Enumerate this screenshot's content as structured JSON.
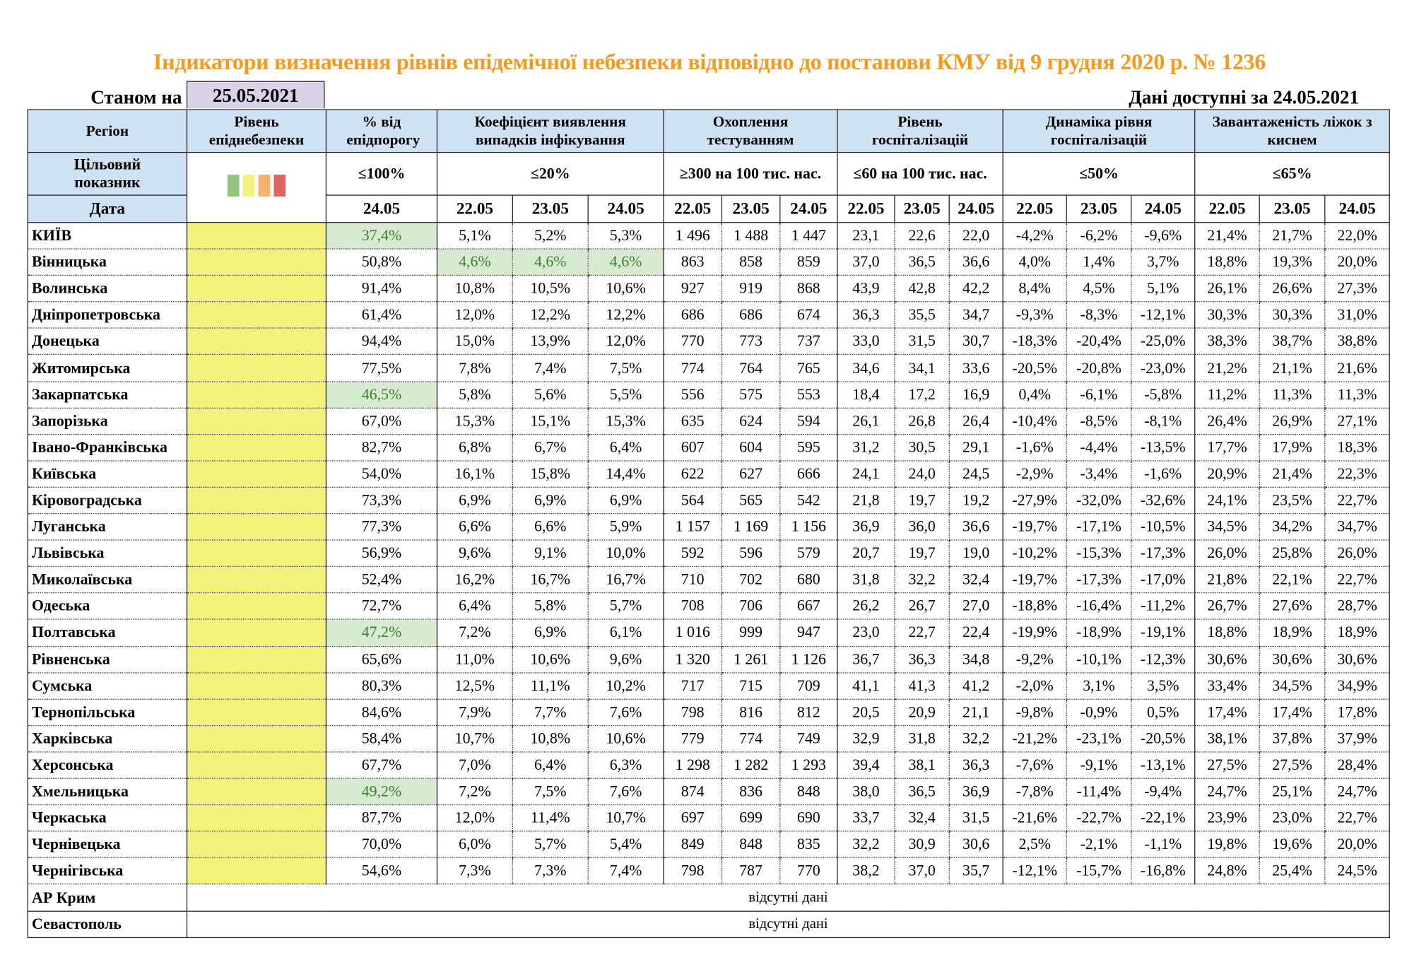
{
  "title": "Індикатори визначення рівнів епідемічної небезпеки відповідно до постанови КМУ від 9 грудня 2020 р. № 1236",
  "as_of_label": "Станом на",
  "as_of_date": "25.05.2021",
  "available_label": "Дані доступні за  24.05.2021",
  "colors": {
    "title": "#F39A1F",
    "header_bg": "#CFE2F3",
    "level_yellow": "#F2F27C",
    "highlight_bg": "#D9EAD3",
    "highlight_text": "#38812B",
    "legend": [
      "#93C47D",
      "#F2F27C",
      "#F6B26B",
      "#E06666"
    ]
  },
  "headers": {
    "region": "Регіон",
    "level": "Рівень епіднебезпеки",
    "pct": "% від епідпорогу",
    "coef": "Коефіцієнт виявлення випадків інфікування",
    "testing": "Охоплення тестуванням",
    "hosp": "Рівень госпіталізацій",
    "dyn": "Динаміка рівня госпіталізацій",
    "beds": "Завантаженість ліжок з киснем"
  },
  "targets": {
    "label": "Цільовий показник",
    "pct": "≤100%",
    "coef": "≤20%",
    "testing": "≥300 на 100 тис. нас.",
    "hosp": "≤60 на 100 тис. нас.",
    "dyn": "≤50%",
    "beds": "≤65%"
  },
  "date_label": "Дата",
  "dates": {
    "pct": [
      "24.05"
    ],
    "group": [
      "22.05",
      "23.05",
      "24.05"
    ]
  },
  "rows": [
    {
      "region": "КИЇВ",
      "level": "yellow",
      "pct": "37,4%",
      "pct_hl": true,
      "coef": [
        "5,1%",
        "5,2%",
        "5,3%"
      ],
      "testing": [
        "1 496",
        "1 488",
        "1 447"
      ],
      "hosp": [
        "23,1",
        "22,6",
        "22,0"
      ],
      "dyn": [
        "-4,2%",
        "-6,2%",
        "-9,6%"
      ],
      "beds": [
        "21,4%",
        "21,7%",
        "22,0%"
      ]
    },
    {
      "region": "Вінницька",
      "level": "yellow",
      "pct": "50,8%",
      "coef": [
        "4,6%",
        "4,6%",
        "4,6%"
      ],
      "coef_hl": true,
      "testing": [
        "863",
        "858",
        "859"
      ],
      "hosp": [
        "37,0",
        "36,5",
        "36,6"
      ],
      "dyn": [
        "4,0%",
        "1,4%",
        "3,7%"
      ],
      "beds": [
        "18,8%",
        "19,3%",
        "20,0%"
      ]
    },
    {
      "region": "Волинська",
      "level": "yellow",
      "pct": "91,4%",
      "coef": [
        "10,8%",
        "10,5%",
        "10,6%"
      ],
      "testing": [
        "927",
        "919",
        "868"
      ],
      "hosp": [
        "43,9",
        "42,8",
        "42,2"
      ],
      "dyn": [
        "8,4%",
        "4,5%",
        "5,1%"
      ],
      "beds": [
        "26,1%",
        "26,6%",
        "27,3%"
      ]
    },
    {
      "region": "Дніпропетровська",
      "level": "yellow",
      "pct": "61,4%",
      "coef": [
        "12,0%",
        "12,2%",
        "12,2%"
      ],
      "testing": [
        "686",
        "686",
        "674"
      ],
      "hosp": [
        "36,3",
        "35,5",
        "34,7"
      ],
      "dyn": [
        "-9,3%",
        "-8,3%",
        "-12,1%"
      ],
      "beds": [
        "30,3%",
        "30,3%",
        "31,0%"
      ]
    },
    {
      "region": "Донецька",
      "level": "yellow",
      "pct": "94,4%",
      "coef": [
        "15,0%",
        "13,9%",
        "12,0%"
      ],
      "testing": [
        "770",
        "773",
        "737"
      ],
      "hosp": [
        "33,0",
        "31,5",
        "30,7"
      ],
      "dyn": [
        "-18,3%",
        "-20,4%",
        "-25,0%"
      ],
      "beds": [
        "38,3%",
        "38,7%",
        "38,8%"
      ]
    },
    {
      "region": "Житомирська",
      "level": "yellow",
      "pct": "77,5%",
      "coef": [
        "7,8%",
        "7,4%",
        "7,5%"
      ],
      "testing": [
        "774",
        "764",
        "765"
      ],
      "hosp": [
        "34,6",
        "34,1",
        "33,6"
      ],
      "dyn": [
        "-20,5%",
        "-20,8%",
        "-23,0%"
      ],
      "beds": [
        "21,2%",
        "21,1%",
        "21,6%"
      ]
    },
    {
      "region": "Закарпатська",
      "level": "yellow",
      "pct": "46,5%",
      "pct_hl": true,
      "coef": [
        "5,8%",
        "5,6%",
        "5,5%"
      ],
      "testing": [
        "556",
        "575",
        "553"
      ],
      "hosp": [
        "18,4",
        "17,2",
        "16,9"
      ],
      "dyn": [
        "0,4%",
        "-6,1%",
        "-5,8%"
      ],
      "beds": [
        "11,2%",
        "11,3%",
        "11,3%"
      ]
    },
    {
      "region": "Запорізька",
      "level": "yellow",
      "pct": "67,0%",
      "coef": [
        "15,3%",
        "15,1%",
        "15,3%"
      ],
      "testing": [
        "635",
        "624",
        "594"
      ],
      "hosp": [
        "26,1",
        "26,8",
        "26,4"
      ],
      "dyn": [
        "-10,4%",
        "-8,5%",
        "-8,1%"
      ],
      "beds": [
        "26,4%",
        "26,9%",
        "27,1%"
      ]
    },
    {
      "region": "Івано-Франківська",
      "level": "yellow",
      "pct": "82,7%",
      "coef": [
        "6,8%",
        "6,7%",
        "6,4%"
      ],
      "testing": [
        "607",
        "604",
        "595"
      ],
      "hosp": [
        "31,2",
        "30,5",
        "29,1"
      ],
      "dyn": [
        "-1,6%",
        "-4,4%",
        "-13,5%"
      ],
      "beds": [
        "17,7%",
        "17,9%",
        "18,3%"
      ]
    },
    {
      "region": "Київська",
      "level": "yellow",
      "pct": "54,0%",
      "coef": [
        "16,1%",
        "15,8%",
        "14,4%"
      ],
      "testing": [
        "622",
        "627",
        "666"
      ],
      "hosp": [
        "24,1",
        "24,0",
        "24,5"
      ],
      "dyn": [
        "-2,9%",
        "-3,4%",
        "-1,6%"
      ],
      "beds": [
        "20,9%",
        "21,4%",
        "22,3%"
      ]
    },
    {
      "region": "Кіровоградська",
      "level": "yellow",
      "pct": "73,3%",
      "coef": [
        "6,9%",
        "6,9%",
        "6,9%"
      ],
      "testing": [
        "564",
        "565",
        "542"
      ],
      "hosp": [
        "21,8",
        "19,7",
        "19,2"
      ],
      "dyn": [
        "-27,9%",
        "-32,0%",
        "-32,6%"
      ],
      "beds": [
        "24,1%",
        "23,5%",
        "22,7%"
      ]
    },
    {
      "region": "Луганська",
      "level": "yellow",
      "pct": "77,3%",
      "coef": [
        "6,6%",
        "6,6%",
        "5,9%"
      ],
      "testing": [
        "1 157",
        "1 169",
        "1 156"
      ],
      "hosp": [
        "36,9",
        "36,0",
        "36,6"
      ],
      "dyn": [
        "-19,7%",
        "-17,1%",
        "-10,5%"
      ],
      "beds": [
        "34,5%",
        "34,2%",
        "34,7%"
      ]
    },
    {
      "region": "Львівська",
      "level": "yellow",
      "pct": "56,9%",
      "coef": [
        "9,6%",
        "9,1%",
        "10,0%"
      ],
      "testing": [
        "592",
        "596",
        "579"
      ],
      "hosp": [
        "20,7",
        "19,7",
        "19,0"
      ],
      "dyn": [
        "-10,2%",
        "-15,3%",
        "-17,3%"
      ],
      "beds": [
        "26,0%",
        "25,8%",
        "26,0%"
      ]
    },
    {
      "region": "Миколаївська",
      "level": "yellow",
      "pct": "52,4%",
      "coef": [
        "16,2%",
        "16,7%",
        "16,7%"
      ],
      "testing": [
        "710",
        "702",
        "680"
      ],
      "hosp": [
        "31,8",
        "32,2",
        "32,4"
      ],
      "dyn": [
        "-19,7%",
        "-17,3%",
        "-17,0%"
      ],
      "beds": [
        "21,8%",
        "22,1%",
        "22,7%"
      ]
    },
    {
      "region": "Одеська",
      "level": "yellow",
      "pct": "72,7%",
      "coef": [
        "6,4%",
        "5,8%",
        "5,7%"
      ],
      "testing": [
        "708",
        "706",
        "667"
      ],
      "hosp": [
        "26,2",
        "26,7",
        "27,0"
      ],
      "dyn": [
        "-18,8%",
        "-16,4%",
        "-11,2%"
      ],
      "beds": [
        "26,7%",
        "27,6%",
        "28,7%"
      ]
    },
    {
      "region": "Полтавська",
      "level": "yellow",
      "pct": "47,2%",
      "pct_hl": true,
      "coef": [
        "7,2%",
        "6,9%",
        "6,1%"
      ],
      "testing": [
        "1 016",
        "999",
        "947"
      ],
      "hosp": [
        "23,0",
        "22,7",
        "22,4"
      ],
      "dyn": [
        "-19,9%",
        "-18,9%",
        "-19,1%"
      ],
      "beds": [
        "18,8%",
        "18,9%",
        "18,9%"
      ]
    },
    {
      "region": "Рівненська",
      "level": "yellow",
      "pct": "65,6%",
      "coef": [
        "11,0%",
        "10,6%",
        "9,6%"
      ],
      "testing": [
        "1 320",
        "1 261",
        "1 126"
      ],
      "hosp": [
        "36,7",
        "36,3",
        "34,8"
      ],
      "dyn": [
        "-9,2%",
        "-10,1%",
        "-12,3%"
      ],
      "beds": [
        "30,6%",
        "30,6%",
        "30,6%"
      ]
    },
    {
      "region": "Сумська",
      "level": "yellow",
      "pct": "80,3%",
      "coef": [
        "12,5%",
        "11,1%",
        "10,2%"
      ],
      "testing": [
        "717",
        "715",
        "709"
      ],
      "hosp": [
        "41,1",
        "41,3",
        "41,2"
      ],
      "dyn": [
        "-2,0%",
        "3,1%",
        "3,5%"
      ],
      "beds": [
        "33,4%",
        "34,5%",
        "34,9%"
      ]
    },
    {
      "region": "Тернопільська",
      "level": "yellow",
      "pct": "84,6%",
      "coef": [
        "7,9%",
        "7,7%",
        "7,6%"
      ],
      "testing": [
        "798",
        "816",
        "812"
      ],
      "hosp": [
        "20,5",
        "20,9",
        "21,1"
      ],
      "dyn": [
        "-9,8%",
        "-0,9%",
        "0,5%"
      ],
      "beds": [
        "17,4%",
        "17,4%",
        "17,8%"
      ]
    },
    {
      "region": "Харківська",
      "level": "yellow",
      "pct": "58,4%",
      "coef": [
        "10,7%",
        "10,8%",
        "10,6%"
      ],
      "testing": [
        "779",
        "774",
        "749"
      ],
      "hosp": [
        "32,9",
        "31,8",
        "32,2"
      ],
      "dyn": [
        "-21,2%",
        "-23,1%",
        "-20,5%"
      ],
      "beds": [
        "38,1%",
        "37,8%",
        "37,9%"
      ]
    },
    {
      "region": "Херсонська",
      "level": "yellow",
      "pct": "67,7%",
      "coef": [
        "7,0%",
        "6,4%",
        "6,3%"
      ],
      "testing": [
        "1 298",
        "1 282",
        "1 293"
      ],
      "hosp": [
        "39,4",
        "38,1",
        "36,3"
      ],
      "dyn": [
        "-7,6%",
        "-9,1%",
        "-13,1%"
      ],
      "beds": [
        "27,5%",
        "27,5%",
        "28,4%"
      ]
    },
    {
      "region": "Хмельницька",
      "level": "yellow",
      "pct": "49,2%",
      "pct_hl": true,
      "coef": [
        "7,2%",
        "7,5%",
        "7,6%"
      ],
      "testing": [
        "874",
        "836",
        "848"
      ],
      "hosp": [
        "38,0",
        "36,5",
        "36,9"
      ],
      "dyn": [
        "-7,8%",
        "-11,4%",
        "-9,4%"
      ],
      "beds": [
        "24,7%",
        "25,1%",
        "24,7%"
      ]
    },
    {
      "region": "Черкаська",
      "level": "yellow",
      "pct": "87,7%",
      "coef": [
        "12,0%",
        "11,4%",
        "10,7%"
      ],
      "testing": [
        "697",
        "699",
        "690"
      ],
      "hosp": [
        "33,7",
        "32,4",
        "31,5"
      ],
      "dyn": [
        "-21,6%",
        "-22,7%",
        "-22,1%"
      ],
      "beds": [
        "23,9%",
        "23,0%",
        "22,7%"
      ]
    },
    {
      "region": "Чернівецька",
      "level": "yellow",
      "pct": "70,0%",
      "coef": [
        "6,0%",
        "5,7%",
        "5,4%"
      ],
      "testing": [
        "849",
        "848",
        "835"
      ],
      "hosp": [
        "32,2",
        "30,9",
        "30,6"
      ],
      "dyn": [
        "2,5%",
        "-2,1%",
        "-1,1%"
      ],
      "beds": [
        "19,8%",
        "19,6%",
        "20,0%"
      ]
    },
    {
      "region": "Чернігівська",
      "level": "yellow",
      "pct": "54,6%",
      "coef": [
        "7,3%",
        "7,3%",
        "7,4%"
      ],
      "testing": [
        "798",
        "787",
        "770"
      ],
      "hosp": [
        "38,2",
        "37,0",
        "35,7"
      ],
      "dyn": [
        "-12,1%",
        "-15,7%",
        "-16,8%"
      ],
      "beds": [
        "24,8%",
        "25,4%",
        "24,5%"
      ]
    }
  ],
  "no_data_rows": [
    {
      "region": "АР Крим",
      "message": "відсутні дані"
    },
    {
      "region": "Севастополь",
      "message": "відсутні дані"
    }
  ]
}
